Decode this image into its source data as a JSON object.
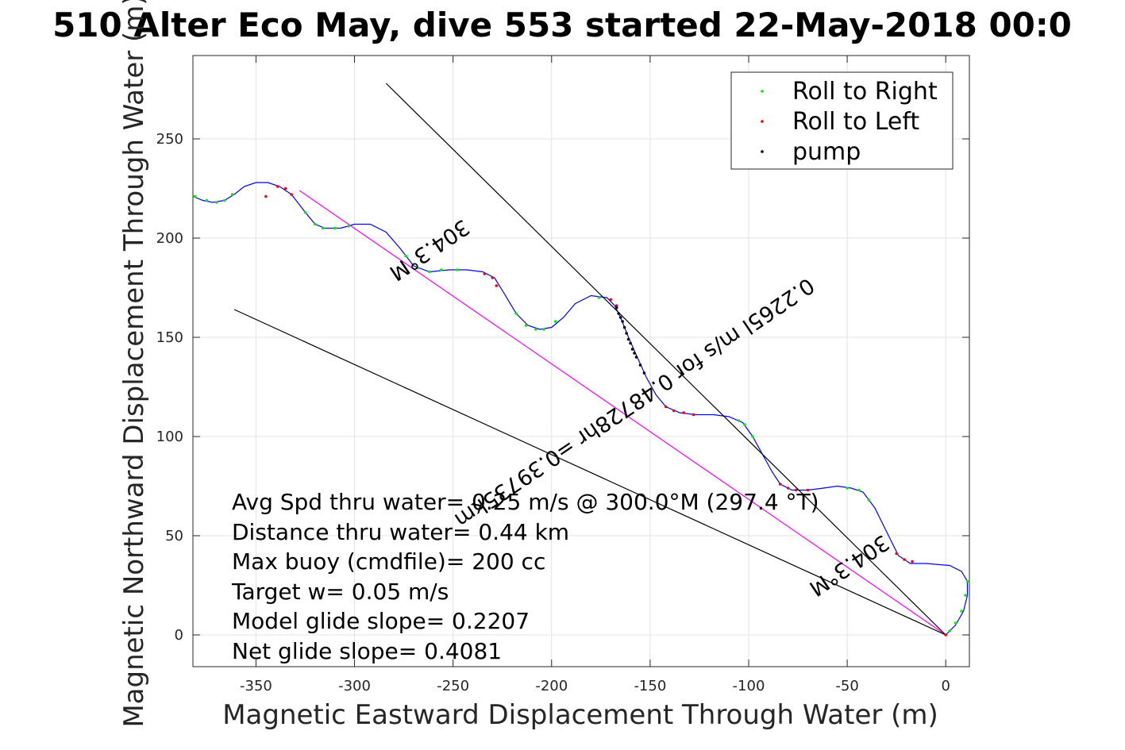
{
  "title": "510 Alter Eco May, dive 553 started 22-May-2018 00:0",
  "chart_data": {
    "type": "scatter",
    "title": "510 Alter Eco May, dive 553 started 22-May-2018 00:0",
    "xlabel": "Magnetic Eastward Displacement Through Water (m)",
    "ylabel": "Magnetic Northward Displacement Through Water (m)",
    "xlim": [
      -382,
      12
    ],
    "ylim": [
      -16,
      292
    ],
    "xticks": [
      -350,
      -300,
      -250,
      -200,
      -150,
      -100,
      -50,
      0
    ],
    "xtick_labels": [
      "-350",
      "-300",
      "-250",
      "-200",
      "-150",
      "-100",
      "-50",
      "0"
    ],
    "yticks": [
      0,
      50,
      100,
      150,
      200,
      250
    ],
    "ytick_labels": [
      "0",
      "50",
      "100",
      "150",
      "200",
      "250"
    ],
    "grid": true,
    "legend_position": "top-right",
    "legend": [
      "Roll to Right",
      "Roll to Left",
      "pump"
    ],
    "series": [
      {
        "name": "track",
        "kind": "line",
        "color": "#0000ff",
        "points": [
          [
            0,
            0
          ],
          [
            5,
            5
          ],
          [
            9,
            12
          ],
          [
            11,
            20
          ],
          [
            11,
            27
          ],
          [
            8,
            32
          ],
          [
            2,
            35
          ],
          [
            -10,
            36
          ],
          [
            -18,
            36
          ],
          [
            -24,
            40
          ],
          [
            -30,
            52
          ],
          [
            -36,
            64
          ],
          [
            -42,
            72
          ],
          [
            -48,
            74
          ],
          [
            -55,
            75
          ],
          [
            -62,
            74
          ],
          [
            -70,
            73
          ],
          [
            -78,
            73
          ],
          [
            -84,
            76
          ],
          [
            -88,
            82
          ],
          [
            -93,
            91
          ],
          [
            -98,
            100
          ],
          [
            -103,
            107
          ],
          [
            -110,
            110
          ],
          [
            -118,
            111
          ],
          [
            -127,
            111
          ],
          [
            -135,
            112
          ],
          [
            -142,
            115
          ],
          [
            -147,
            121
          ],
          [
            -152,
            130
          ],
          [
            -157,
            141
          ],
          [
            -161,
            150
          ],
          [
            -165,
            160
          ],
          [
            -168,
            166
          ],
          [
            -172,
            170
          ],
          [
            -180,
            171
          ],
          [
            -188,
            167
          ],
          [
            -194,
            160
          ],
          [
            -200,
            155
          ],
          [
            -206,
            154
          ],
          [
            -212,
            156
          ],
          [
            -218,
            162
          ],
          [
            -224,
            172
          ],
          [
            -229,
            180
          ],
          [
            -235,
            183
          ],
          [
            -243,
            184
          ],
          [
            -252,
            184
          ],
          [
            -262,
            183
          ],
          [
            -270,
            186
          ],
          [
            -277,
            195
          ],
          [
            -284,
            203
          ],
          [
            -292,
            207
          ],
          [
            -300,
            207
          ],
          [
            -307,
            205
          ],
          [
            -315,
            205
          ],
          [
            -320,
            207
          ],
          [
            -325,
            213
          ],
          [
            -332,
            222
          ],
          [
            -338,
            226
          ],
          [
            -344,
            228
          ],
          [
            -350,
            228
          ],
          [
            -356,
            226
          ],
          [
            -361,
            222
          ],
          [
            -366,
            219
          ],
          [
            -372,
            218
          ],
          [
            -377,
            219
          ],
          [
            -382,
            221
          ]
        ]
      },
      {
        "name": "Roll to Right",
        "color": "#00ee00",
        "points": [
          [
            2,
            2
          ],
          [
            5,
            6
          ],
          [
            8,
            12
          ],
          [
            10,
            20
          ],
          [
            11,
            27
          ],
          [
            -39,
            68
          ],
          [
            -44,
            73
          ],
          [
            -50,
            74
          ],
          [
            -98,
            100
          ],
          [
            -102,
            106
          ],
          [
            -105,
            108
          ],
          [
            -176,
            170
          ],
          [
            -198,
            158
          ],
          [
            -204,
            154
          ],
          [
            -208,
            154
          ],
          [
            -213,
            156
          ],
          [
            -218,
            162
          ],
          [
            -248,
            184
          ],
          [
            -256,
            184
          ],
          [
            -262,
            183
          ],
          [
            -268,
            185
          ],
          [
            -274,
            191
          ],
          [
            -303,
            206
          ],
          [
            -310,
            205
          ],
          [
            -316,
            205
          ],
          [
            -320,
            207
          ],
          [
            -325,
            213
          ],
          [
            -362,
            222
          ],
          [
            -366,
            219
          ],
          [
            -370,
            218
          ],
          [
            -375,
            219
          ],
          [
            -381,
            221
          ]
        ]
      },
      {
        "name": "Roll to Left",
        "color": "#ff0000",
        "points": [
          [
            0,
            0
          ],
          [
            -17,
            37
          ],
          [
            -21,
            38
          ],
          [
            -25,
            41
          ],
          [
            -70,
            73
          ],
          [
            -76,
            73
          ],
          [
            -80,
            74
          ],
          [
            -84,
            76
          ],
          [
            -128,
            111
          ],
          [
            -133,
            112
          ],
          [
            -138,
            113
          ],
          [
            -142,
            115
          ],
          [
            -167,
            166
          ],
          [
            -170,
            169
          ],
          [
            -234,
            182
          ],
          [
            -230,
            180
          ],
          [
            -228,
            176
          ],
          [
            -335,
            225
          ],
          [
            -339,
            226
          ],
          [
            -345,
            221
          ],
          [
            -332,
            222
          ]
        ]
      },
      {
        "name": "pump",
        "color": "#000000",
        "points": [
          [
            -153,
            132
          ],
          [
            -155,
            136
          ],
          [
            -157,
            140
          ],
          [
            -158,
            142
          ],
          [
            -159,
            144
          ],
          [
            -160,
            147
          ],
          [
            -161,
            149
          ],
          [
            -162,
            152
          ],
          [
            -163,
            155
          ],
          [
            -164,
            158
          ],
          [
            -165,
            160
          ],
          [
            -166,
            162
          ],
          [
            -167,
            165
          ]
        ]
      },
      {
        "name": "heading line",
        "kind": "line",
        "color": "#ff00ff",
        "points": [
          [
            0,
            0
          ],
          [
            -328,
            224
          ]
        ]
      },
      {
        "name": "glide envelope upper",
        "kind": "line",
        "color": "#000000",
        "points": [
          [
            0,
            0
          ],
          [
            -284,
            278
          ]
        ]
      },
      {
        "name": "glide envelope lower",
        "kind": "line",
        "color": "#000000",
        "points": [
          [
            0,
            0
          ],
          [
            -361,
            164
          ]
        ]
      }
    ],
    "line_annotations": [
      {
        "text": "304.3°M",
        "x": -264,
        "y": 197,
        "angle": 146
      },
      {
        "text": "0.2265l m/s for 0.48728hr =0.39735km",
        "x": -160,
        "y": 120,
        "angle": 146
      },
      {
        "text": "304.3°M",
        "x": -51,
        "y": 38,
        "angle": 146
      }
    ]
  },
  "annotations": [
    "Avg Spd thru water=  0.25 m/s @ 300.0°M (297.4 °T)",
    "Distance thru water=  0.44 km",
    "Max buoy (cmdfile)= 200 cc",
    "Target w= 0.05 m/s",
    "Model glide slope= 0.2207",
    "Net glide slope= 0.4081"
  ]
}
